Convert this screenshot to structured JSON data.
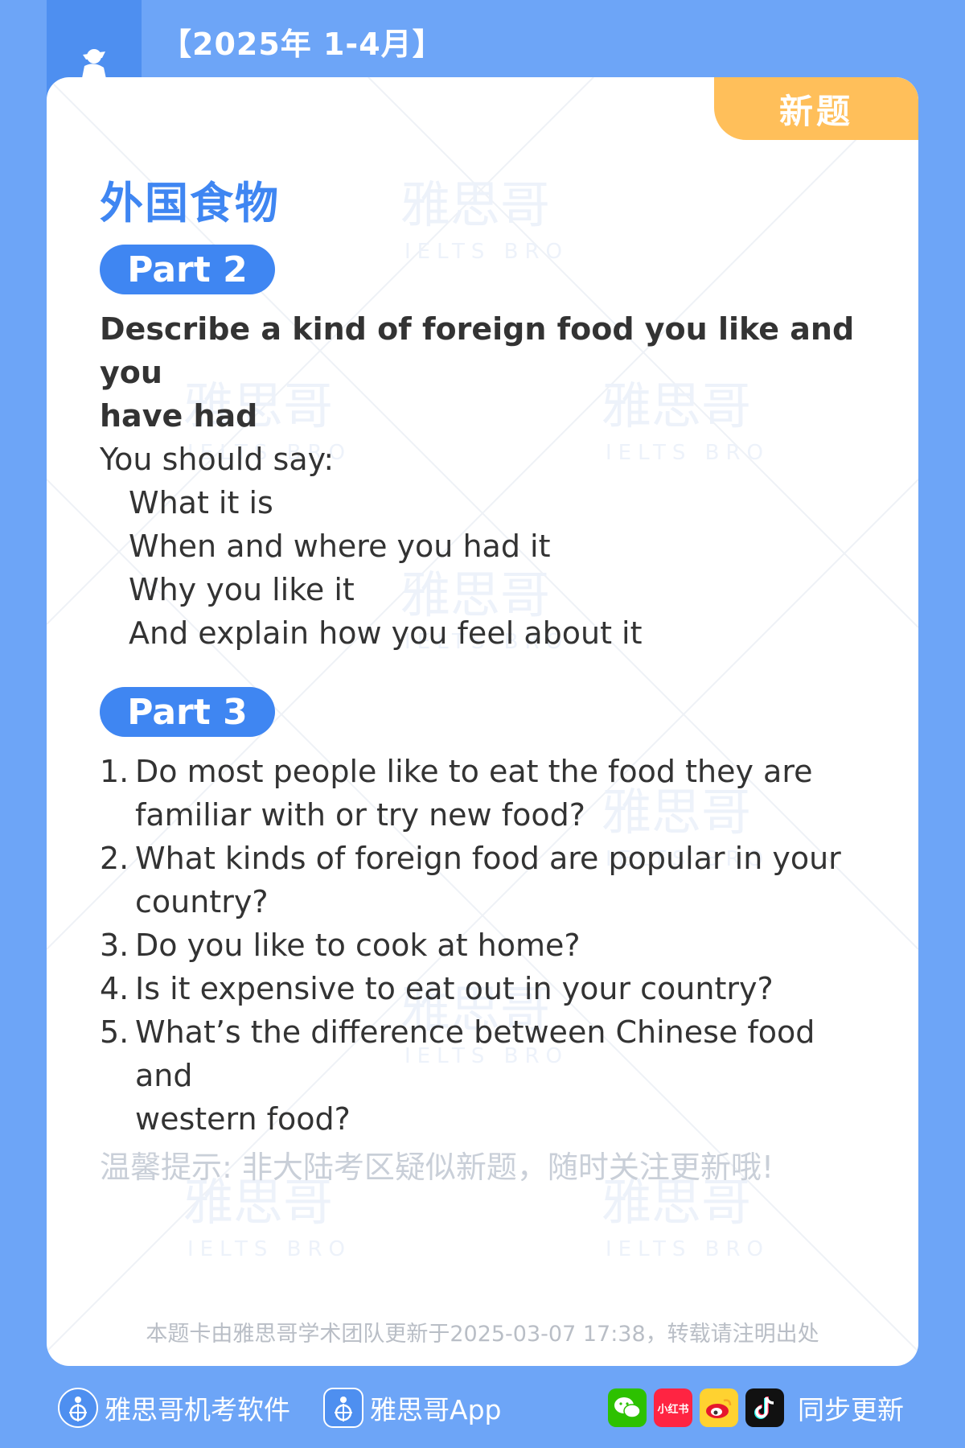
{
  "header": {
    "title": "【2025年 1-4月】"
  },
  "card": {
    "new_tag": "新题",
    "topic_title": "外国食物",
    "part2": {
      "label": "Part 2",
      "cue_title_line1": "Describe a kind of foreign food you like and you",
      "cue_title_line2": "have had",
      "you_should_say": "You should say:",
      "points": [
        "What it is",
        "When and where you had it",
        "Why you like it",
        "And explain how you feel about it"
      ]
    },
    "part3": {
      "label": "Part 3",
      "questions": [
        {
          "num": "1.",
          "line1": "Do most people like to eat the food they are",
          "line2": "familiar with or try new food?"
        },
        {
          "num": "2.",
          "line1": "What kinds of foreign food are popular in your",
          "line2": "country?"
        },
        {
          "num": "3.",
          "line1": "Do you like to cook at home?",
          "line2": ""
        },
        {
          "num": "4.",
          "line1": "Is it expensive to eat out in your country?",
          "line2": ""
        },
        {
          "num": "5.",
          "line1": "What’s the difference between Chinese food and",
          "line2": "western food?"
        }
      ]
    },
    "tip": "温馨提示: 非大陆考区疑似新题，随时关注更新哦!",
    "footnote": "本题卡由雅思哥学术团队更新于2025-03-07 17:38，转载请注明出处",
    "watermark_cn": "雅思哥",
    "watermark_en": "IELTS BRO"
  },
  "bottom_bar": {
    "software_label": "雅思哥机考软件",
    "app_label": "雅思哥App",
    "sync_label": "同步更新",
    "xiaohongshu_text": "小红书",
    "socials": [
      "wechat-icon",
      "xiaohongshu-icon",
      "weibo-icon",
      "tiktok-icon"
    ]
  },
  "colors": {
    "background": "#6da5f7",
    "accent_blue": "#3f86f2",
    "tag_orange": "#ffbf5a",
    "text": "#333333"
  }
}
